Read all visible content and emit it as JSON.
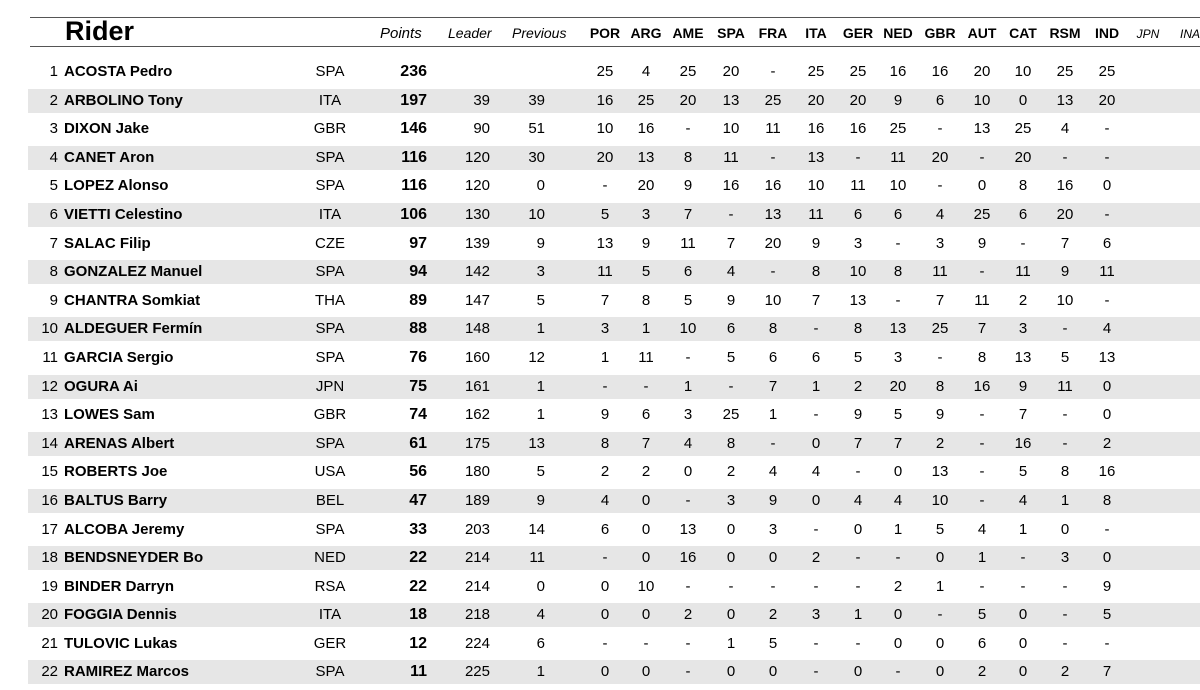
{
  "header": {
    "rider": "Rider",
    "points": "Points",
    "leader": "Leader",
    "previous": "Previous",
    "races": [
      "POR",
      "ARG",
      "AME",
      "SPA",
      "FRA",
      "ITA",
      "GER",
      "NED",
      "GBR",
      "AUT",
      "CAT",
      "RSM",
      "IND"
    ],
    "future_races": [
      "JPN",
      "INA"
    ]
  },
  "standings": [
    {
      "pos": "1",
      "name": "ACOSTA Pedro",
      "nat": "SPA",
      "pts": "236",
      "leader": "",
      "prev": "",
      "res": [
        "25",
        "4",
        "25",
        "20",
        "-",
        "25",
        "25",
        "16",
        "16",
        "20",
        "10",
        "25",
        "25"
      ]
    },
    {
      "pos": "2",
      "name": "ARBOLINO Tony",
      "nat": "ITA",
      "pts": "197",
      "leader": "39",
      "prev": "39",
      "res": [
        "16",
        "25",
        "20",
        "13",
        "25",
        "20",
        "20",
        "9",
        "6",
        "10",
        "0",
        "13",
        "20"
      ]
    },
    {
      "pos": "3",
      "name": "DIXON Jake",
      "nat": "GBR",
      "pts": "146",
      "leader": "90",
      "prev": "51",
      "res": [
        "10",
        "16",
        "-",
        "10",
        "11",
        "16",
        "16",
        "25",
        "-",
        "13",
        "25",
        "4",
        "-"
      ]
    },
    {
      "pos": "4",
      "name": "CANET Aron",
      "nat": "SPA",
      "pts": "116",
      "leader": "120",
      "prev": "30",
      "res": [
        "20",
        "13",
        "8",
        "11",
        "-",
        "13",
        "-",
        "11",
        "20",
        "-",
        "20",
        "-",
        "-"
      ]
    },
    {
      "pos": "5",
      "name": "LOPEZ Alonso",
      "nat": "SPA",
      "pts": "116",
      "leader": "120",
      "prev": "0",
      "res": [
        "-",
        "20",
        "9",
        "16",
        "16",
        "10",
        "11",
        "10",
        "-",
        "0",
        "8",
        "16",
        "0"
      ]
    },
    {
      "pos": "6",
      "name": "VIETTI Celestino",
      "nat": "ITA",
      "pts": "106",
      "leader": "130",
      "prev": "10",
      "res": [
        "5",
        "3",
        "7",
        "-",
        "13",
        "11",
        "6",
        "6",
        "4",
        "25",
        "6",
        "20",
        "-"
      ]
    },
    {
      "pos": "7",
      "name": "SALAC Filip",
      "nat": "CZE",
      "pts": "97",
      "leader": "139",
      "prev": "9",
      "res": [
        "13",
        "9",
        "11",
        "7",
        "20",
        "9",
        "3",
        "-",
        "3",
        "9",
        "-",
        "7",
        "6"
      ]
    },
    {
      "pos": "8",
      "name": "GONZALEZ Manuel",
      "nat": "SPA",
      "pts": "94",
      "leader": "142",
      "prev": "3",
      "res": [
        "11",
        "5",
        "6",
        "4",
        "-",
        "8",
        "10",
        "8",
        "11",
        "-",
        "11",
        "9",
        "11"
      ]
    },
    {
      "pos": "9",
      "name": "CHANTRA Somkiat",
      "nat": "THA",
      "pts": "89",
      "leader": "147",
      "prev": "5",
      "res": [
        "7",
        "8",
        "5",
        "9",
        "10",
        "7",
        "13",
        "-",
        "7",
        "11",
        "2",
        "10",
        "-"
      ]
    },
    {
      "pos": "10",
      "name": "ALDEGUER Fermín",
      "nat": "SPA",
      "pts": "88",
      "leader": "148",
      "prev": "1",
      "res": [
        "3",
        "1",
        "10",
        "6",
        "8",
        "-",
        "8",
        "13",
        "25",
        "7",
        "3",
        "-",
        "4"
      ]
    },
    {
      "pos": "11",
      "name": "GARCIA Sergio",
      "nat": "SPA",
      "pts": "76",
      "leader": "160",
      "prev": "12",
      "res": [
        "1",
        "11",
        "-",
        "5",
        "6",
        "6",
        "5",
        "3",
        "-",
        "8",
        "13",
        "5",
        "13"
      ]
    },
    {
      "pos": "12",
      "name": "OGURA Ai",
      "nat": "JPN",
      "pts": "75",
      "leader": "161",
      "prev": "1",
      "res": [
        "-",
        "-",
        "1",
        "-",
        "7",
        "1",
        "2",
        "20",
        "8",
        "16",
        "9",
        "11",
        "0"
      ]
    },
    {
      "pos": "13",
      "name": "LOWES Sam",
      "nat": "GBR",
      "pts": "74",
      "leader": "162",
      "prev": "1",
      "res": [
        "9",
        "6",
        "3",
        "25",
        "1",
        "-",
        "9",
        "5",
        "9",
        "-",
        "7",
        "-",
        "0"
      ]
    },
    {
      "pos": "14",
      "name": "ARENAS Albert",
      "nat": "SPA",
      "pts": "61",
      "leader": "175",
      "prev": "13",
      "res": [
        "8",
        "7",
        "4",
        "8",
        "-",
        "0",
        "7",
        "7",
        "2",
        "-",
        "16",
        "-",
        "2"
      ]
    },
    {
      "pos": "15",
      "name": "ROBERTS Joe",
      "nat": "USA",
      "pts": "56",
      "leader": "180",
      "prev": "5",
      "res": [
        "2",
        "2",
        "0",
        "2",
        "4",
        "4",
        "-",
        "0",
        "13",
        "-",
        "5",
        "8",
        "16"
      ]
    },
    {
      "pos": "16",
      "name": "BALTUS Barry",
      "nat": "BEL",
      "pts": "47",
      "leader": "189",
      "prev": "9",
      "res": [
        "4",
        "0",
        "-",
        "3",
        "9",
        "0",
        "4",
        "4",
        "10",
        "-",
        "4",
        "1",
        "8"
      ]
    },
    {
      "pos": "17",
      "name": "ALCOBA Jeremy",
      "nat": "SPA",
      "pts": "33",
      "leader": "203",
      "prev": "14",
      "res": [
        "6",
        "0",
        "13",
        "0",
        "3",
        "-",
        "0",
        "1",
        "5",
        "4",
        "1",
        "0",
        "-"
      ]
    },
    {
      "pos": "18",
      "name": "BENDSNEYDER Bo",
      "nat": "NED",
      "pts": "22",
      "leader": "214",
      "prev": "11",
      "res": [
        "-",
        "0",
        "16",
        "0",
        "0",
        "2",
        "-",
        "-",
        "0",
        "1",
        "-",
        "3",
        "0"
      ]
    },
    {
      "pos": "19",
      "name": "BINDER Darryn",
      "nat": "RSA",
      "pts": "22",
      "leader": "214",
      "prev": "0",
      "res": [
        "0",
        "10",
        "-",
        "-",
        "-",
        "-",
        "-",
        "2",
        "1",
        "-",
        "-",
        "-",
        "9"
      ]
    },
    {
      "pos": "20",
      "name": "FOGGIA Dennis",
      "nat": "ITA",
      "pts": "18",
      "leader": "218",
      "prev": "4",
      "res": [
        "0",
        "0",
        "2",
        "0",
        "2",
        "3",
        "1",
        "0",
        "-",
        "5",
        "0",
        "-",
        "5"
      ]
    },
    {
      "pos": "21",
      "name": "TULOVIC Lukas",
      "nat": "GER",
      "pts": "12",
      "leader": "224",
      "prev": "6",
      "res": [
        "-",
        "-",
        "-",
        "1",
        "5",
        "-",
        "-",
        "0",
        "0",
        "6",
        "0",
        "-",
        "-"
      ]
    },
    {
      "pos": "22",
      "name": "RAMIREZ Marcos",
      "nat": "SPA",
      "pts": "11",
      "leader": "225",
      "prev": "1",
      "res": [
        "0",
        "0",
        "-",
        "0",
        "0",
        "-",
        "0",
        "-",
        "0",
        "2",
        "0",
        "2",
        "7"
      ]
    }
  ]
}
